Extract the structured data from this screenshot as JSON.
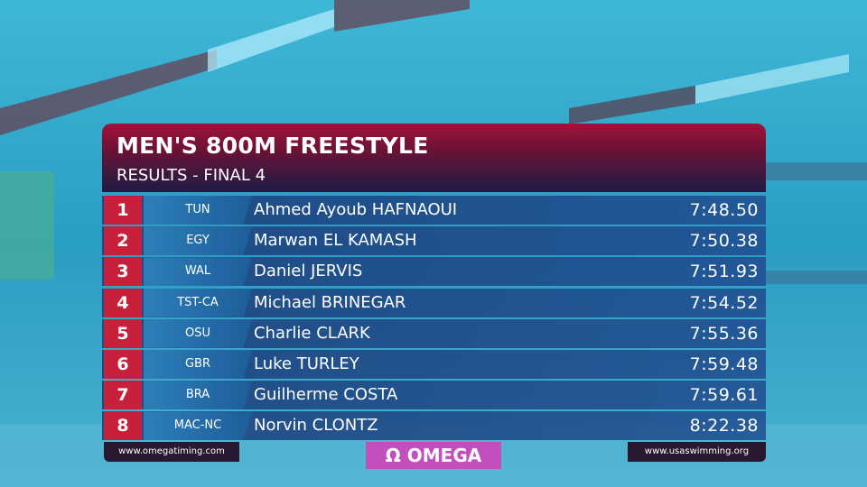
{
  "header": {
    "title": "MEN'S 800M FREESTYLE",
    "subtitle": "RESULTS - FINAL 4"
  },
  "table": {
    "rows": [
      [
        "1",
        "TUN",
        "Ahmed Ayoub HAFNAOUI",
        "7:48.50"
      ],
      [
        "2",
        "EGY",
        "Marwan EL KAMASH",
        "7:50.38"
      ],
      [
        "3",
        "WAL",
        "Daniel JERVIS",
        "7:51.93"
      ],
      [
        "4",
        "TST-CA",
        "Michael BRINEGAR",
        "7:54.52"
      ],
      [
        "5",
        "OSU",
        "Charlie CLARK",
        "7:55.36"
      ],
      [
        "6",
        "GBR",
        "Luke TURLEY",
        "7:59.48"
      ],
      [
        "7",
        "BRA",
        "Guilherme COSTA",
        "7:59.61"
      ],
      [
        "8",
        "MAC-NC",
        "Norvin CLONTZ",
        "8:22.38"
      ]
    ]
  },
  "footer": {
    "left": "www.omegatiming.com",
    "brand": "Ω OMEGA",
    "right": "www.usaswimming.org"
  }
}
